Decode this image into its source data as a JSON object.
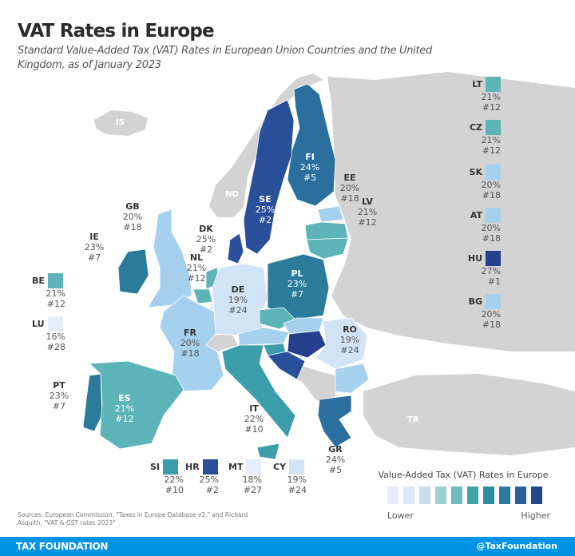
{
  "header": {
    "title": "VAT Rates in Europe",
    "subtitle": "Standard Value-Added Tax (VAT) Rates in European Union Countries and the United Kingdom, as of January 2023"
  },
  "rate_colors": {
    "16": "#e6ecf9",
    "18": "#e6ecf9",
    "19": "#d3e3f6",
    "20": "#a5d0ee",
    "21": "#5cb4b8",
    "22": "#3c9eaa",
    "23": "#2a7c9a",
    "24": "#2a6f9e",
    "25": "#2a4f9a",
    "27": "#243f8c",
    "none": "#d3d3d3"
  },
  "countries": {
    "FI": {
      "code": "FI",
      "rate": "24%",
      "rank": "#5"
    },
    "SE": {
      "code": "SE",
      "rate": "25%",
      "rank": "#2"
    },
    "EE": {
      "code": "EE",
      "rate": "20%",
      "rank": "#18"
    },
    "LV": {
      "code": "LV",
      "rate": "21%",
      "rank": "#12"
    },
    "LT": {
      "code": "LT",
      "rate": "21%",
      "rank": "#12"
    },
    "GB": {
      "code": "GB",
      "rate": "20%",
      "rank": "#18"
    },
    "IE": {
      "code": "IE",
      "rate": "23%",
      "rank": "#7"
    },
    "DK": {
      "code": "DK",
      "rate": "25%",
      "rank": "#2"
    },
    "NL": {
      "code": "NL",
      "rate": "21%",
      "rank": "#12"
    },
    "BE": {
      "code": "BE",
      "rate": "21%",
      "rank": "#12"
    },
    "LU": {
      "code": "LU",
      "rate": "16%",
      "rank": "#28"
    },
    "DE": {
      "code": "DE",
      "rate": "19%",
      "rank": "#24"
    },
    "PL": {
      "code": "PL",
      "rate": "23%",
      "rank": "#7"
    },
    "CZ": {
      "code": "CZ",
      "rate": "21%",
      "rank": "#12"
    },
    "SK": {
      "code": "SK",
      "rate": "20%",
      "rank": "#18"
    },
    "AT": {
      "code": "AT",
      "rate": "20%",
      "rank": "#18"
    },
    "HU": {
      "code": "HU",
      "rate": "27%",
      "rank": "#1"
    },
    "BG": {
      "code": "BG",
      "rate": "20%",
      "rank": "#18"
    },
    "FR": {
      "code": "FR",
      "rate": "20%",
      "rank": "#18"
    },
    "RO": {
      "code": "RO",
      "rate": "19%",
      "rank": "#24"
    },
    "PT": {
      "code": "PT",
      "rate": "23%",
      "rank": "#7"
    },
    "ES": {
      "code": "ES",
      "rate": "21%",
      "rank": "#12"
    },
    "IT": {
      "code": "IT",
      "rate": "22%",
      "rank": "#10"
    },
    "GR": {
      "code": "GR",
      "rate": "24%",
      "rank": "#5"
    },
    "SI": {
      "code": "SI",
      "rate": "22%",
      "rank": "#10"
    },
    "HR": {
      "code": "HR",
      "rate": "25%",
      "rank": "#2"
    },
    "MT": {
      "code": "MT",
      "rate": "18%",
      "rank": "#27"
    },
    "CY": {
      "code": "CY",
      "rate": "19%",
      "rank": "#24"
    }
  },
  "non_eu_labels": {
    "IS": "IS",
    "NO": "NO",
    "TR": "TR"
  },
  "legend": {
    "title": "Value-Added Tax (VAT) Rates in Europe",
    "low_label": "Lower",
    "high_label": "Higher",
    "scale_colors": [
      "#e6ecf9",
      "#dde6f6",
      "#cbdceb",
      "#9fcfd1",
      "#6fbcbe",
      "#3fa3a8",
      "#2e8c9e",
      "#2d7aa0",
      "#2b61a0",
      "#26478e"
    ]
  },
  "sources": "Sources: European Commission, \"Taxes in Europe Database v3,\" and Richard Asquith, \"VAT & GST rates 2023\"",
  "footer": {
    "brand": "TAX FOUNDATION",
    "handle": "@TaxFoundation"
  }
}
